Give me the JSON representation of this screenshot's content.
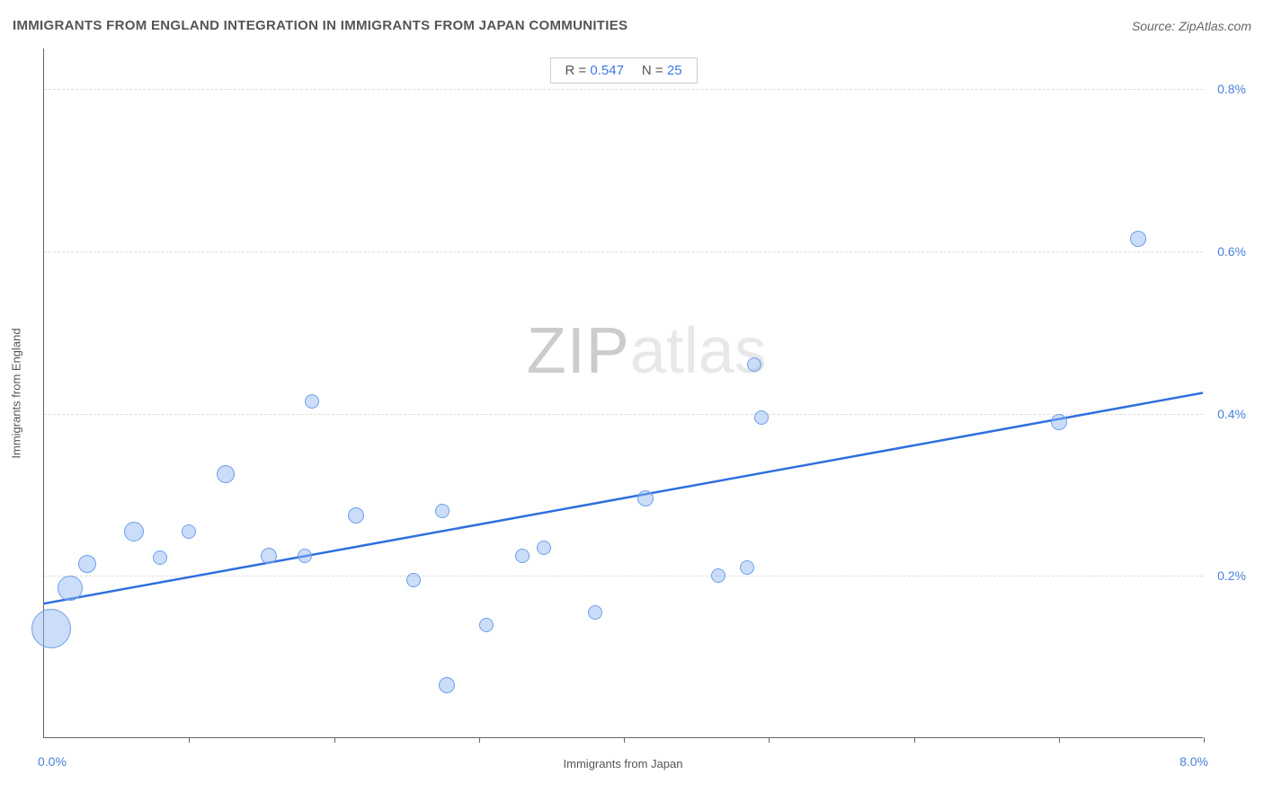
{
  "title": "IMMIGRANTS FROM ENGLAND INTEGRATION IN IMMIGRANTS FROM JAPAN COMMUNITIES",
  "source_label": "Source: ZipAtlas.com",
  "watermark": {
    "left": "ZIP",
    "right": "atlas"
  },
  "stats": {
    "r_label": "R =",
    "r_value": "0.547",
    "n_label": "N =",
    "n_value": "25"
  },
  "chart": {
    "type": "scatter",
    "x_axis": {
      "label": "Immigrants from Japan",
      "min": 0.0,
      "max": 8.0,
      "min_label": "0.0%",
      "max_label": "8.0%",
      "tick_positions": [
        1.0,
        2.0,
        3.0,
        4.0,
        5.0,
        6.0,
        7.0,
        8.0
      ]
    },
    "y_axis": {
      "label": "Immigrants from England",
      "min": 0.0,
      "max": 0.85,
      "grid_positions": [
        0.2,
        0.4,
        0.6,
        0.8
      ],
      "tick_labels": [
        {
          "pos": 0.2,
          "text": "0.2%"
        },
        {
          "pos": 0.4,
          "text": "0.4%"
        },
        {
          "pos": 0.6,
          "text": "0.6%"
        },
        {
          "pos": 0.8,
          "text": "0.8%"
        }
      ]
    },
    "trend_line": {
      "x1": 0.0,
      "y1": 0.165,
      "x2": 8.0,
      "y2": 0.425,
      "color": "#2f6fe0",
      "width": 2.5
    },
    "point_fill": "rgba(140,180,240,0.45)",
    "point_stroke": "#6da0e8",
    "points": [
      {
        "x": 0.05,
        "y": 0.135,
        "r": 22
      },
      {
        "x": 0.18,
        "y": 0.185,
        "r": 14
      },
      {
        "x": 0.3,
        "y": 0.215,
        "r": 10
      },
      {
        "x": 0.62,
        "y": 0.255,
        "r": 11
      },
      {
        "x": 0.8,
        "y": 0.222,
        "r": 8
      },
      {
        "x": 1.0,
        "y": 0.255,
        "r": 8
      },
      {
        "x": 1.25,
        "y": 0.325,
        "r": 10
      },
      {
        "x": 1.55,
        "y": 0.225,
        "r": 9
      },
      {
        "x": 1.8,
        "y": 0.225,
        "r": 8
      },
      {
        "x": 1.85,
        "y": 0.415,
        "r": 8
      },
      {
        "x": 2.15,
        "y": 0.275,
        "r": 9
      },
      {
        "x": 2.55,
        "y": 0.195,
        "r": 8
      },
      {
        "x": 2.75,
        "y": 0.28,
        "r": 8
      },
      {
        "x": 2.78,
        "y": 0.065,
        "r": 9
      },
      {
        "x": 3.05,
        "y": 0.14,
        "r": 8
      },
      {
        "x": 3.3,
        "y": 0.225,
        "r": 8
      },
      {
        "x": 3.45,
        "y": 0.235,
        "r": 8
      },
      {
        "x": 3.8,
        "y": 0.155,
        "r": 8
      },
      {
        "x": 4.15,
        "y": 0.295,
        "r": 9
      },
      {
        "x": 4.65,
        "y": 0.2,
        "r": 8
      },
      {
        "x": 4.85,
        "y": 0.21,
        "r": 8
      },
      {
        "x": 4.95,
        "y": 0.395,
        "r": 8
      },
      {
        "x": 4.9,
        "y": 0.46,
        "r": 8
      },
      {
        "x": 7.0,
        "y": 0.39,
        "r": 9
      },
      {
        "x": 7.55,
        "y": 0.615,
        "r": 9
      }
    ],
    "background_color": "#ffffff",
    "grid_color": "#dddddd",
    "axis_color": "#666666"
  }
}
